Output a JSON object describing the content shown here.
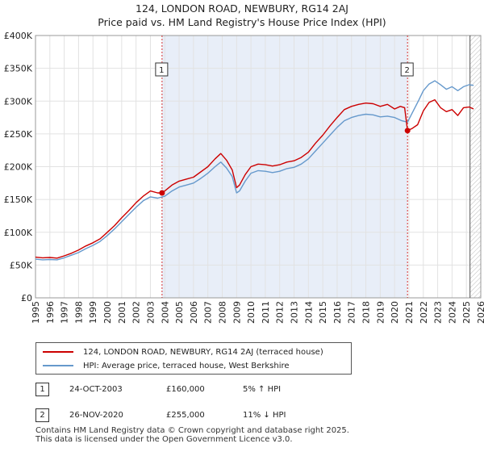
{
  "title": {
    "line1": "124, LONDON ROAD, NEWBURY, RG14 2AJ",
    "line2": "Price paid vs. HM Land Registry's House Price Index (HPI)"
  },
  "chart_data": {
    "type": "line",
    "title": "124, LONDON ROAD, NEWBURY, RG14 2AJ — Price paid vs. HM Land Registry's House Price Index (HPI)",
    "xlabel": "",
    "ylabel": "",
    "xlim": [
      1995,
      2026
    ],
    "ylim": [
      0,
      400000
    ],
    "x_ticks": [
      "1995",
      "1996",
      "1997",
      "1998",
      "1999",
      "2000",
      "2001",
      "2002",
      "2003",
      "2004",
      "2005",
      "2006",
      "2007",
      "2008",
      "2009",
      "2010",
      "2011",
      "2012",
      "2013",
      "2014",
      "2015",
      "2016",
      "2017",
      "2018",
      "2019",
      "2020",
      "2021",
      "2022",
      "2023",
      "2024",
      "2025",
      "2026"
    ],
    "y_ticks": [
      {
        "value": 0,
        "label": "£0"
      },
      {
        "value": 50000,
        "label": "£50K"
      },
      {
        "value": 100000,
        "label": "£100K"
      },
      {
        "value": 150000,
        "label": "£150K"
      },
      {
        "value": 200000,
        "label": "£200K"
      },
      {
        "value": 250000,
        "label": "£250K"
      },
      {
        "value": 300000,
        "label": "£300K"
      },
      {
        "value": 350000,
        "label": "£350K"
      },
      {
        "value": 400000,
        "label": "£400K"
      }
    ],
    "series": [
      {
        "name": "124, LONDON ROAD, NEWBURY, RG14 2AJ (terraced house)",
        "color": "#cc0000",
        "x": [
          1995.0,
          1995.5,
          1996.0,
          1996.5,
          1997.0,
          1997.5,
          1998.0,
          1998.5,
          1999.0,
          1999.5,
          2000.0,
          2000.5,
          2001.0,
          2001.5,
          2002.0,
          2002.5,
          2003.0,
          2003.5,
          2003.81,
          2004.0,
          2004.5,
          2005.0,
          2005.5,
          2006.0,
          2006.5,
          2007.0,
          2007.5,
          2007.9,
          2008.3,
          2008.7,
          2009.0,
          2009.2,
          2009.6,
          2010.0,
          2010.5,
          2011.0,
          2011.5,
          2012.0,
          2012.5,
          2013.0,
          2013.5,
          2014.0,
          2014.5,
          2015.0,
          2015.5,
          2016.0,
          2016.5,
          2017.0,
          2017.5,
          2018.0,
          2018.5,
          2019.0,
          2019.5,
          2020.0,
          2020.4,
          2020.7,
          2020.9,
          2021.2,
          2021.6,
          2022.0,
          2022.4,
          2022.8,
          2023.2,
          2023.6,
          2024.0,
          2024.4,
          2024.8,
          2025.2,
          2025.5
        ],
        "y": [
          62000,
          61000,
          61500,
          60500,
          64000,
          68000,
          73000,
          79000,
          84000,
          90000,
          100000,
          110000,
          122000,
          133000,
          145000,
          155000,
          163000,
          160000,
          160000,
          163000,
          172000,
          178000,
          181000,
          184000,
          192000,
          200000,
          212000,
          220000,
          210000,
          195000,
          168000,
          172000,
          188000,
          200000,
          204000,
          203000,
          201000,
          203000,
          207000,
          209000,
          214000,
          222000,
          236000,
          248000,
          262000,
          275000,
          287000,
          292000,
          295000,
          297000,
          296000,
          292000,
          295000,
          288000,
          292000,
          290000,
          255000,
          258000,
          264000,
          285000,
          298000,
          302000,
          290000,
          284000,
          287000,
          278000,
          290000,
          291000,
          288000
        ]
      },
      {
        "name": "HPI: Average price, terraced house, West Berkshire",
        "color": "#6699cc",
        "x": [
          1995.0,
          1995.5,
          1996.0,
          1996.5,
          1997.0,
          1997.5,
          1998.0,
          1998.5,
          1999.0,
          1999.5,
          2000.0,
          2000.5,
          2001.0,
          2001.5,
          2002.0,
          2002.5,
          2003.0,
          2003.5,
          2004.0,
          2004.5,
          2005.0,
          2005.5,
          2006.0,
          2006.5,
          2007.0,
          2007.5,
          2007.9,
          2008.3,
          2008.7,
          2009.0,
          2009.2,
          2009.6,
          2010.0,
          2010.5,
          2011.0,
          2011.5,
          2012.0,
          2012.5,
          2013.0,
          2013.5,
          2014.0,
          2014.5,
          2015.0,
          2015.5,
          2016.0,
          2016.5,
          2017.0,
          2017.5,
          2018.0,
          2018.5,
          2019.0,
          2019.5,
          2020.0,
          2020.5,
          2020.9,
          2021.3,
          2021.7,
          2022.0,
          2022.4,
          2022.8,
          2023.2,
          2023.6,
          2024.0,
          2024.4,
          2024.8,
          2025.2,
          2025.5
        ],
        "y": [
          59000,
          58000,
          58500,
          58000,
          61000,
          65000,
          69000,
          75000,
          80000,
          86000,
          95000,
          105000,
          116000,
          127000,
          138000,
          148000,
          154000,
          152000,
          155000,
          163000,
          169000,
          172000,
          175000,
          182000,
          190000,
          200000,
          207000,
          198000,
          185000,
          160000,
          163000,
          178000,
          190000,
          194000,
          193000,
          191000,
          193000,
          197000,
          199000,
          204000,
          212000,
          224000,
          236000,
          248000,
          260000,
          270000,
          275000,
          278000,
          280000,
          279000,
          276000,
          277000,
          275000,
          270000,
          268000,
          285000,
          302000,
          316000,
          326000,
          331000,
          325000,
          318000,
          322000,
          316000,
          322000,
          325000,
          324000
        ]
      }
    ],
    "annotations": [
      {
        "label": "1",
        "x": 2003.81,
        "y": 160000,
        "date": "24-OCT-2003",
        "price": "£160,000",
        "hpi": "5% ↑ HPI"
      },
      {
        "label": "2",
        "x": 2020.9,
        "y": 255000,
        "date": "26-NOV-2020",
        "price": "£255,000",
        "hpi": "11% ↓ HPI"
      }
    ],
    "forecast_start": 2025.25
  },
  "legend": {
    "red_label": "124, LONDON ROAD, NEWBURY, RG14 2AJ (terraced house)",
    "blue_label": "HPI: Average price, terraced house, West Berkshire"
  },
  "transactions": [
    {
      "num": "1",
      "date": "24-OCT-2003",
      "price": "£160,000",
      "hpi": "5% ↑ HPI"
    },
    {
      "num": "2",
      "date": "26-NOV-2020",
      "price": "£255,000",
      "hpi": "11% ↓ HPI"
    }
  ],
  "footer": {
    "line1": "Contains HM Land Registry data © Crown copyright and database right 2025.",
    "line2": "This data is licensed under the Open Government Licence v3.0."
  },
  "colors": {
    "red": "#cc0000",
    "blue": "#6699cc",
    "shade": "#e8eef8"
  }
}
